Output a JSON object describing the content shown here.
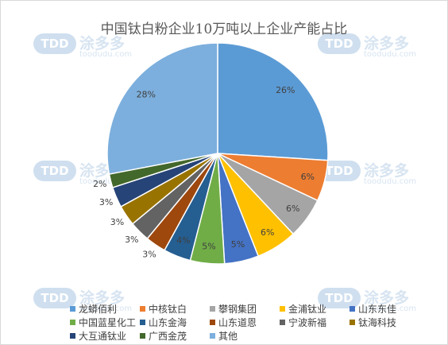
{
  "watermark": {
    "logo": "TDD",
    "name": "涂多多",
    "url": "toodudu.com"
  },
  "chart_data": {
    "type": "pie",
    "title": "中国钛白粉企业10万吨以上企业产能占比",
    "slices": [
      {
        "name": "龙蟒佰利",
        "value": 26,
        "label": "26%",
        "color": "#5b9bd5"
      },
      {
        "name": "中核钛白",
        "value": 6,
        "label": "6%",
        "color": "#ed7d31"
      },
      {
        "name": "攀钢集团",
        "value": 6,
        "label": "6%",
        "color": "#a5a5a5"
      },
      {
        "name": "金浦钛业",
        "value": 6,
        "label": "6%",
        "color": "#ffc000"
      },
      {
        "name": "山东东佳",
        "value": 5,
        "label": "5%",
        "color": "#4472c4"
      },
      {
        "name": "中国蓝星化工",
        "value": 5,
        "label": "5%",
        "color": "#70ad47"
      },
      {
        "name": "山东金海",
        "value": 4,
        "label": "4%",
        "color": "#255e91"
      },
      {
        "name": "山东道恩",
        "value": 3,
        "label": "3%",
        "color": "#9e480e"
      },
      {
        "name": "宁波新福",
        "value": 3,
        "label": "3%",
        "color": "#636363"
      },
      {
        "name": "钛海科技",
        "value": 3,
        "label": "3%",
        "color": "#997300"
      },
      {
        "name": "大互通钛业",
        "value": 3,
        "label": "3%",
        "color": "#264478"
      },
      {
        "name": "广西金茂",
        "value": 2,
        "label": "2%",
        "color": "#43682b"
      },
      {
        "name": "其他",
        "value": 28,
        "label": "28%",
        "color": "#7cafdd"
      }
    ],
    "legend_position": "bottom"
  }
}
